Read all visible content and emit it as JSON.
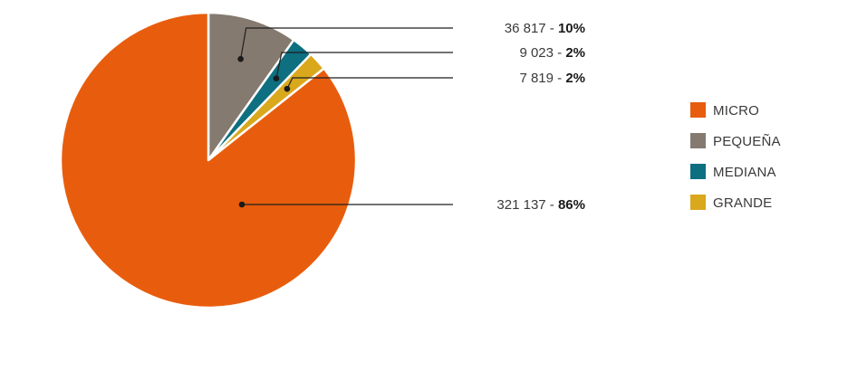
{
  "chart_data": {
    "type": "pie",
    "categories": [
      "MICRO",
      "PEQUEÑA",
      "MEDIANA",
      "GRANDE"
    ],
    "values": [
      321137,
      36817,
      9023,
      7819
    ],
    "value_labels": [
      "321 137",
      "36 817",
      "9 023",
      "7 819"
    ],
    "percent_labels": [
      "86%",
      "10%",
      "2%",
      "2%"
    ],
    "colors": [
      "#E85D0D",
      "#857A70",
      "#0E6F80",
      "#D9A81C"
    ],
    "legend_position": "right",
    "start_angle": "12 o'clock, clockwise, starting with PEQUEÑA",
    "title": "",
    "callout_separator": " - "
  }
}
